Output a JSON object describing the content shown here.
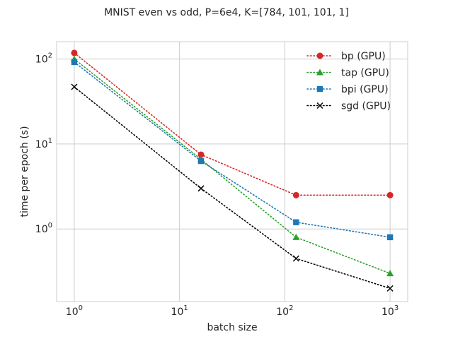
{
  "chart_data": {
    "type": "line",
    "title": "MNIST even vs odd, P=6e4, K=[784, 101, 101, 1]",
    "xlabel": "batch size",
    "ylabel": "time per epoch (s)",
    "xscale": "log",
    "yscale": "log",
    "xlim": [
      0.68,
      1470
    ],
    "ylim": [
      0.14,
      160
    ],
    "grid": true,
    "legend_position": "top-right",
    "x_ticks": [
      {
        "base": "10",
        "exp": "0",
        "value": 1
      },
      {
        "base": "10",
        "exp": "1",
        "value": 10
      },
      {
        "base": "10",
        "exp": "2",
        "value": 100
      },
      {
        "base": "10",
        "exp": "3",
        "value": 1000
      }
    ],
    "y_ticks": [
      {
        "base": "10",
        "exp": "0",
        "value": 1
      },
      {
        "base": "10",
        "exp": "1",
        "value": 10
      },
      {
        "base": "10",
        "exp": "2",
        "value": 100
      }
    ],
    "x": [
      1,
      16,
      128,
      1000
    ],
    "series": [
      {
        "name": "bp (GPU)",
        "color": "#d62728",
        "marker": "circle",
        "values": [
          118,
          7.5,
          2.5,
          2.5
        ]
      },
      {
        "name": "tap (GPU)",
        "color": "#2ca02c",
        "marker": "triangle",
        "values": [
          100,
          6.6,
          0.8,
          0.3
        ]
      },
      {
        "name": "bpi (GPU)",
        "color": "#1f77b4",
        "marker": "square",
        "values": [
          92,
          6.3,
          1.2,
          0.8
        ]
      },
      {
        "name": "sgd (GPU)",
        "color": "#000000",
        "marker": "x",
        "values": [
          47,
          3.0,
          0.45,
          0.2
        ]
      }
    ]
  }
}
